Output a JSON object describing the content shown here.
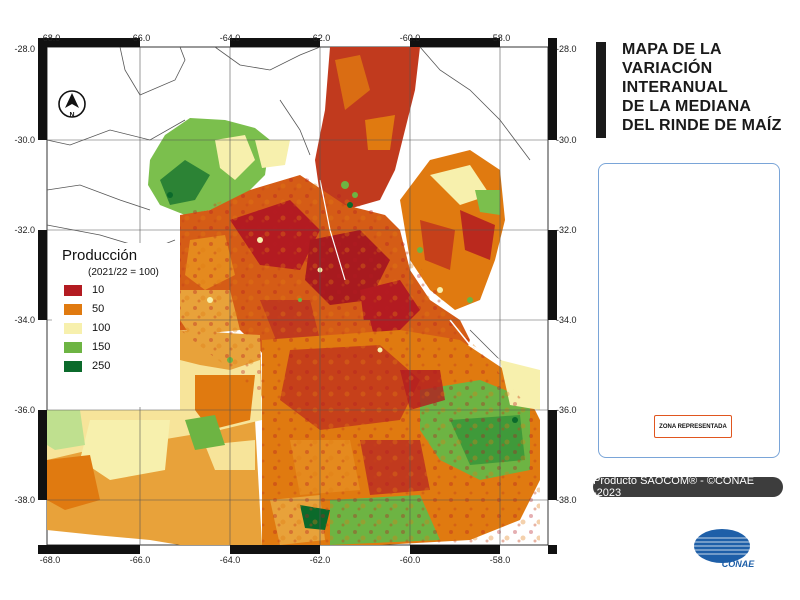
{
  "title_lines": [
    "MAPA DE LA",
    "VARIACIÓN",
    "INTERANUAL",
    "DE LA MEDIANA",
    "DEL RINDE DE MAÍZ"
  ],
  "legend": {
    "title": "Producción",
    "subtitle": "(2021/22 = 100)",
    "items": [
      {
        "label": "10",
        "color": "#b31b21"
      },
      {
        "label": "50",
        "color": "#e07a10"
      },
      {
        "label": "100",
        "color": "#f7f0ad"
      },
      {
        "label": "150",
        "color": "#6db443"
      },
      {
        "label": "250",
        "color": "#0b6a2b"
      }
    ]
  },
  "axes": {
    "lon_ticks": [
      "-68.0",
      "-66.0",
      "-64.0",
      "-62.0",
      "-60.0",
      "-58.0"
    ],
    "lat_ticks": [
      "-28.0",
      "-30.0",
      "-32.0",
      "-34.0",
      "-36.0",
      "-38.0"
    ]
  },
  "north_arrow": "N",
  "inset": {
    "zone_label": "ZONA REPRESENTADA",
    "zone_color": "#e8582a",
    "land_color": "#9cc3ef"
  },
  "footer": "Producto SAOCOM® - ©CONAE -2023",
  "logo_text": "CONAE"
}
